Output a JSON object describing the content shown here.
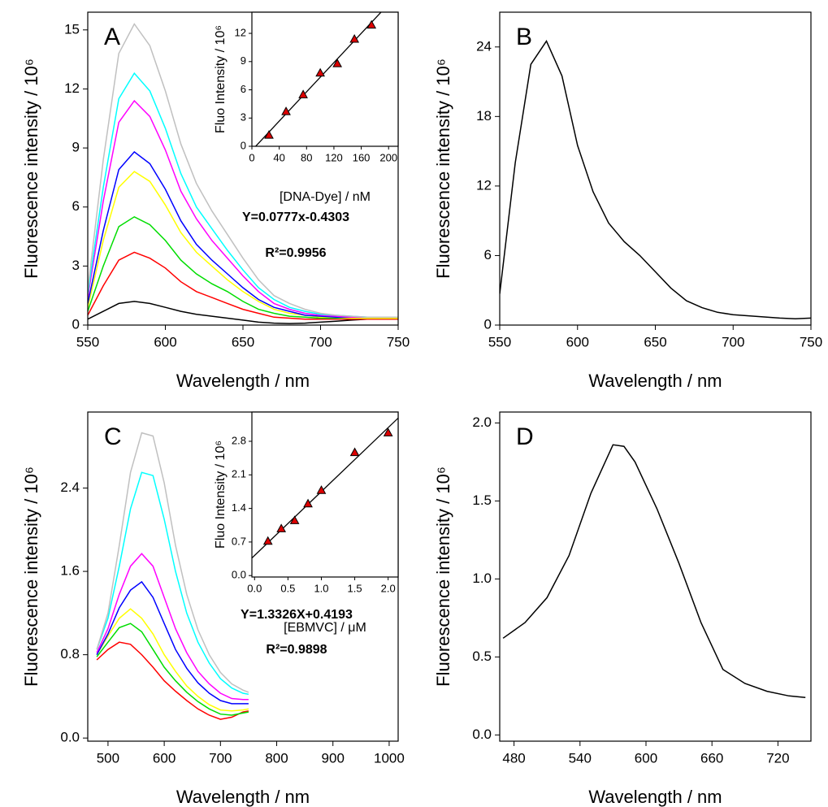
{
  "chart_data": [
    {
      "type": "line",
      "panel_label": "A",
      "x_label": "Wavelength / nm",
      "y_label": "Fluorescence intensity / 10⁶",
      "xlim": [
        550,
        750
      ],
      "xticks": [
        550,
        600,
        650,
        700,
        750
      ],
      "ylim": [
        0,
        15.9
      ],
      "yticks": [
        0,
        3,
        6,
        9,
        12,
        15
      ],
      "x": [
        550,
        560,
        570,
        580,
        590,
        600,
        610,
        620,
        630,
        640,
        650,
        660,
        670,
        680,
        690,
        700,
        710,
        720,
        730,
        740,
        750
      ],
      "series": [
        {
          "color": "#000000",
          "values": [
            0.3,
            0.7,
            1.1,
            1.2,
            1.1,
            0.9,
            0.7,
            0.55,
            0.45,
            0.35,
            0.25,
            0.15,
            0.1,
            0.08,
            0.1,
            0.15,
            0.2,
            0.25,
            0.3,
            0.3,
            0.3
          ]
        },
        {
          "color": "#ff0000",
          "values": [
            0.5,
            2.0,
            3.3,
            3.7,
            3.4,
            2.9,
            2.2,
            1.7,
            1.4,
            1.1,
            0.8,
            0.6,
            0.4,
            0.35,
            0.3,
            0.3,
            0.3,
            0.3,
            0.3,
            0.3,
            0.3
          ]
        },
        {
          "color": "#00dd00",
          "values": [
            0.7,
            3.0,
            5.0,
            5.5,
            5.1,
            4.3,
            3.3,
            2.6,
            2.1,
            1.7,
            1.2,
            0.8,
            0.6,
            0.45,
            0.4,
            0.35,
            0.35,
            0.35,
            0.35,
            0.35,
            0.35
          ]
        },
        {
          "color": "#ffff00",
          "values": [
            0.9,
            4.3,
            7.0,
            7.8,
            7.3,
            6.1,
            4.7,
            3.7,
            3.0,
            2.3,
            1.7,
            1.2,
            0.8,
            0.6,
            0.5,
            0.4,
            0.4,
            0.35,
            0.35,
            0.35,
            0.35
          ]
        },
        {
          "color": "#0000ff",
          "values": [
            1.1,
            4.8,
            7.9,
            8.8,
            8.2,
            6.9,
            5.3,
            4.1,
            3.3,
            2.6,
            1.9,
            1.3,
            0.9,
            0.7,
            0.5,
            0.45,
            0.4,
            0.4,
            0.4,
            0.4,
            0.4
          ]
        },
        {
          "color": "#ff00ff",
          "values": [
            1.4,
            6.3,
            10.3,
            11.4,
            10.6,
            8.9,
            6.8,
            5.4,
            4.3,
            3.4,
            2.5,
            1.7,
            1.1,
            0.8,
            0.6,
            0.5,
            0.45,
            0.4,
            0.4,
            0.4,
            0.4
          ]
        },
        {
          "color": "#00ffff",
          "values": [
            1.6,
            7.0,
            11.5,
            12.8,
            11.9,
            10.0,
            7.7,
            6.0,
            4.9,
            3.8,
            2.8,
            1.9,
            1.3,
            0.9,
            0.7,
            0.55,
            0.5,
            0.45,
            0.4,
            0.4,
            0.4
          ]
        },
        {
          "color": "#c0c0c0",
          "values": [
            1.8,
            8.4,
            13.8,
            15.3,
            14.2,
            11.9,
            9.2,
            7.2,
            5.8,
            4.6,
            3.4,
            2.3,
            1.5,
            1.1,
            0.8,
            0.6,
            0.5,
            0.45,
            0.4,
            0.4,
            0.4
          ]
        }
      ]
    },
    {
      "type": "line",
      "panel_label": "B",
      "x_label": "Wavelength / nm",
      "y_label": "Fluorescence intensity / 10⁶",
      "xlim": [
        550,
        750
      ],
      "xticks": [
        550,
        600,
        650,
        700,
        750
      ],
      "ylim": [
        0,
        27
      ],
      "yticks": [
        0,
        6,
        12,
        18,
        24
      ],
      "x": [
        550,
        560,
        570,
        580,
        590,
        600,
        610,
        620,
        630,
        640,
        650,
        660,
        670,
        680,
        690,
        700,
        710,
        720,
        730,
        740,
        750
      ],
      "series": [
        {
          "color": "#000000",
          "values": [
            2.7,
            14,
            22.5,
            24.5,
            21.5,
            15.5,
            11.5,
            8.8,
            7.2,
            6,
            4.6,
            3.2,
            2.1,
            1.5,
            1.1,
            0.9,
            0.8,
            0.7,
            0.6,
            0.55,
            0.6
          ]
        }
      ]
    },
    {
      "type": "line",
      "panel_label": "C",
      "x_label": "Wavelength / nm",
      "y_label": "Fluorescence intensity / 10⁶",
      "xlim": [
        464,
        1016
      ],
      "xticks": [
        500,
        600,
        700,
        800,
        900,
        1000
      ],
      "ylim": [
        -0.03,
        3.13
      ],
      "yticks": [
        {
          "value": 0,
          "label": "0.0"
        },
        0.8,
        1.6,
        2.4
      ],
      "x": [
        480,
        500,
        520,
        540,
        560,
        580,
        600,
        620,
        640,
        660,
        680,
        700,
        720,
        740,
        750
      ],
      "series": [
        {
          "color": "#ff0000",
          "values": [
            0.75,
            0.85,
            0.92,
            0.9,
            0.8,
            0.68,
            0.55,
            0.45,
            0.36,
            0.28,
            0.22,
            0.18,
            0.2,
            0.25,
            0.26
          ]
        },
        {
          "color": "#00dd00",
          "values": [
            0.78,
            0.92,
            1.06,
            1.1,
            1.02,
            0.85,
            0.68,
            0.55,
            0.44,
            0.35,
            0.28,
            0.23,
            0.22,
            0.24,
            0.25
          ]
        },
        {
          "color": "#ffff00",
          "values": [
            0.8,
            0.98,
            1.15,
            1.24,
            1.15,
            1.0,
            0.8,
            0.64,
            0.5,
            0.4,
            0.32,
            0.27,
            0.26,
            0.27,
            0.28
          ]
        },
        {
          "color": "#0000ff",
          "values": [
            0.8,
            1.0,
            1.25,
            1.42,
            1.5,
            1.35,
            1.1,
            0.85,
            0.67,
            0.53,
            0.43,
            0.36,
            0.33,
            0.33,
            0.33
          ]
        },
        {
          "color": "#ff00ff",
          "values": [
            0.82,
            1.05,
            1.38,
            1.65,
            1.77,
            1.65,
            1.35,
            1.05,
            0.82,
            0.64,
            0.52,
            0.43,
            0.38,
            0.37,
            0.37
          ]
        },
        {
          "color": "#00ffff",
          "values": [
            0.85,
            1.15,
            1.65,
            2.2,
            2.55,
            2.52,
            2.1,
            1.6,
            1.2,
            0.92,
            0.72,
            0.57,
            0.48,
            0.43,
            0.42
          ]
        },
        {
          "color": "#c0c0c0",
          "values": [
            0.85,
            1.2,
            1.85,
            2.55,
            2.93,
            2.9,
            2.45,
            1.85,
            1.38,
            1.04,
            0.8,
            0.63,
            0.52,
            0.46,
            0.44
          ]
        }
      ]
    },
    {
      "type": "line",
      "panel_label": "D",
      "x_label": "Wavelength / nm",
      "y_label": "Fluorescence intensity / 10⁶",
      "xlim": [
        467,
        750
      ],
      "xticks": [
        480,
        540,
        600,
        660,
        720
      ],
      "ylim": [
        -0.04,
        2.07
      ],
      "yticks": [
        {
          "value": 0,
          "label": "0.0"
        },
        0.5,
        {
          "value": 1,
          "label": "1.0"
        },
        1.5,
        {
          "value": 2,
          "label": "2.0"
        }
      ],
      "x": [
        470,
        490,
        510,
        530,
        550,
        570,
        580,
        590,
        610,
        630,
        650,
        670,
        690,
        710,
        730,
        745
      ],
      "series": [
        {
          "color": "#000000",
          "values": [
            0.62,
            0.72,
            0.88,
            1.15,
            1.55,
            1.86,
            1.85,
            1.75,
            1.45,
            1.1,
            0.72,
            0.42,
            0.33,
            0.28,
            0.25,
            0.24
          ]
        }
      ]
    },
    {
      "type": "scatter",
      "x_label": "[DNA-Dye] / nM",
      "y_label": "Fluo Intensity / 10⁶",
      "xlim": [
        0,
        214
      ],
      "xticks": [
        0,
        40,
        80,
        120,
        160,
        200
      ],
      "ylim": [
        0,
        14.25
      ],
      "yticks": [
        0,
        3,
        6,
        9,
        12
      ],
      "x": [
        25,
        50,
        75,
        100,
        125,
        150,
        175
      ],
      "values": [
        1.2,
        3.7,
        5.5,
        7.8,
        8.8,
        11.4,
        12.9
      ],
      "color": "#dd0000",
      "fit": {
        "slope": 0.0777,
        "intercept": -0.4303
      },
      "annotations": [
        "Y=0.0777x-0.4303",
        "R²=0.9956"
      ]
    },
    {
      "type": "scatter",
      "x_label": "[EBMVC] / μM",
      "y_label": "Fluo Intensity / 10⁶",
      "xlim": [
        -0.04,
        2.15
      ],
      "xticks": [
        {
          "value": 0,
          "label": "0.0"
        },
        0.5,
        {
          "value": 1,
          "label": "1.0"
        },
        1.5,
        {
          "value": 2,
          "label": "2.0"
        }
      ],
      "ylim": [
        -0.03,
        3.41
      ],
      "yticks": [
        {
          "value": 0,
          "label": "0.0"
        },
        0.7,
        1.4,
        2.1,
        2.8
      ],
      "x": [
        0.2,
        0.4,
        0.6,
        0.8,
        1.0,
        1.5,
        2.0
      ],
      "values": [
        0.72,
        0.98,
        1.15,
        1.5,
        1.78,
        2.57,
        2.98
      ],
      "color": "#dd0000",
      "fit": {
        "slope": 1.3326,
        "intercept": 0.4193
      },
      "annotations": [
        "Y=1.3326X+0.4193",
        "R²=0.9898"
      ]
    }
  ]
}
